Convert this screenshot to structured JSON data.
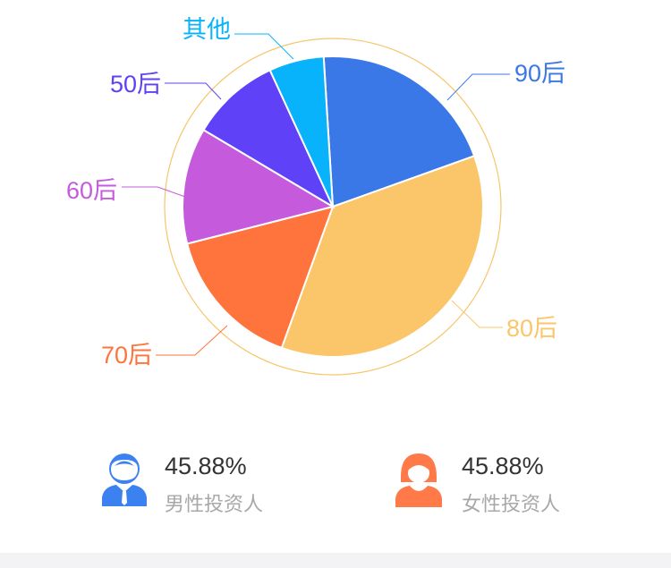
{
  "chart_data": {
    "type": "pie",
    "slices": [
      {
        "label": "90后",
        "value": 20.5,
        "color": "#3b78e7"
      },
      {
        "label": "80后",
        "value": 36.0,
        "color": "#fbc66a"
      },
      {
        "label": "70后",
        "value": 15.5,
        "color": "#ff743c"
      },
      {
        "label": "60后",
        "value": 12.5,
        "color": "#c55bdc"
      },
      {
        "label": "50后",
        "value": 9.6,
        "color": "#5f41f8"
      },
      {
        "label": "其他",
        "value": 5.9,
        "color": "#09b3fb"
      }
    ],
    "ring_color": "#f6c56a"
  },
  "stats": {
    "male": {
      "percent": "45.88%",
      "label": "男性投资人",
      "icon": "male-investor-icon",
      "color": "#3b82f0"
    },
    "female": {
      "percent": "45.88%",
      "label": "女性投资人",
      "icon": "female-investor-icon",
      "color": "#ff7a48"
    }
  }
}
